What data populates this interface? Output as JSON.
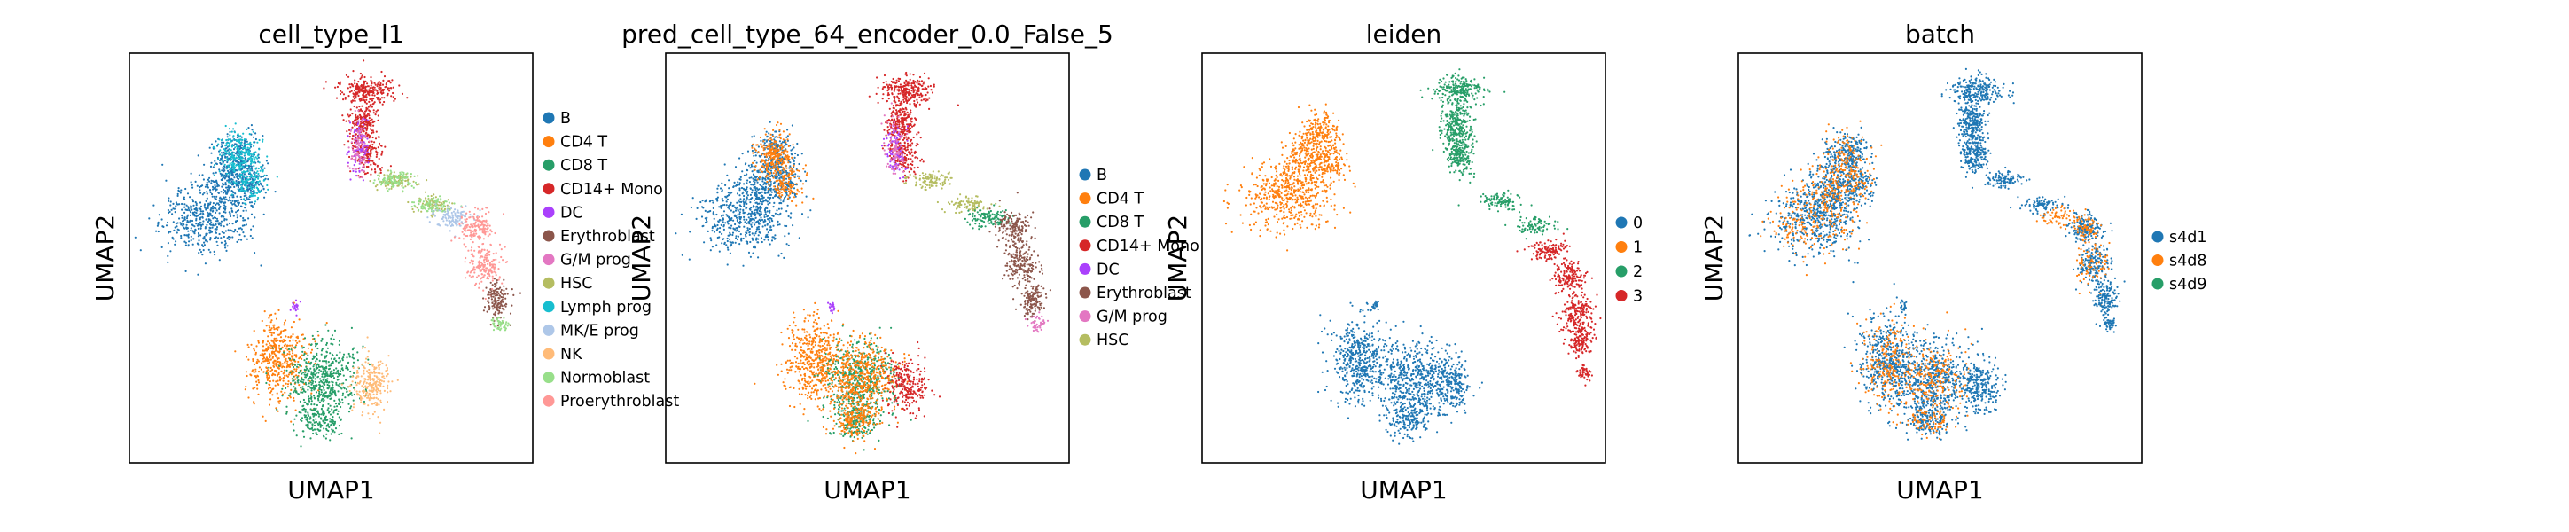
{
  "chart_data": [
    {
      "type": "scatter",
      "title": "cell_type_l1",
      "xlabel": "UMAP1",
      "ylabel": "UMAP2",
      "grid": false,
      "ticks": "none",
      "legend_position": "right",
      "legend": [
        {
          "label": "B",
          "color": "#1f77b4"
        },
        {
          "label": "CD4 T",
          "color": "#ff7f0e"
        },
        {
          "label": "CD8 T",
          "color": "#279e68"
        },
        {
          "label": "CD14+ Mono",
          "color": "#d62728"
        },
        {
          "label": "DC",
          "color": "#aa40fc"
        },
        {
          "label": "Erythroblast",
          "color": "#8c564b"
        },
        {
          "label": "G/M prog",
          "color": "#e377c2"
        },
        {
          "label": "HSC",
          "color": "#b5bd61"
        },
        {
          "label": "Lymph prog",
          "color": "#17becf"
        },
        {
          "label": "MK/E prog",
          "color": "#aec7e8"
        },
        {
          "label": "NK",
          "color": "#ffbb78"
        },
        {
          "label": "Normoblast",
          "color": "#98df8a"
        },
        {
          "label": "Proerythroblast",
          "color": "#ff9896"
        }
      ]
    },
    {
      "type": "scatter",
      "title": "pred_cell_type_64_encoder_0.0_False_5",
      "xlabel": "UMAP1",
      "ylabel": "UMAP2",
      "grid": false,
      "ticks": "none",
      "legend_position": "right",
      "legend": [
        {
          "label": "B",
          "color": "#1f77b4"
        },
        {
          "label": "CD4 T",
          "color": "#ff7f0e"
        },
        {
          "label": "CD8 T",
          "color": "#279e68"
        },
        {
          "label": "CD14+ Mono",
          "color": "#d62728"
        },
        {
          "label": "DC",
          "color": "#aa40fc"
        },
        {
          "label": "Erythroblast",
          "color": "#8c564b"
        },
        {
          "label": "G/M prog",
          "color": "#e377c2"
        },
        {
          "label": "HSC",
          "color": "#b5bd61"
        }
      ]
    },
    {
      "type": "scatter",
      "title": "leiden",
      "xlabel": "UMAP1",
      "ylabel": "UMAP2",
      "grid": false,
      "ticks": "none",
      "legend_position": "right",
      "legend": [
        {
          "label": "0",
          "color": "#1f77b4"
        },
        {
          "label": "1",
          "color": "#ff7f0e"
        },
        {
          "label": "2",
          "color": "#279e68"
        },
        {
          "label": "3",
          "color": "#d62728"
        }
      ]
    },
    {
      "type": "scatter",
      "title": "batch",
      "xlabel": "UMAP1",
      "ylabel": "UMAP2",
      "grid": false,
      "ticks": "none",
      "legend_position": "right",
      "legend": [
        {
          "label": "s4d1",
          "color": "#1f77b4"
        },
        {
          "label": "s4d8",
          "color": "#ff7f0e"
        },
        {
          "label": "s4d9",
          "color": "#279e68"
        }
      ]
    }
  ]
}
